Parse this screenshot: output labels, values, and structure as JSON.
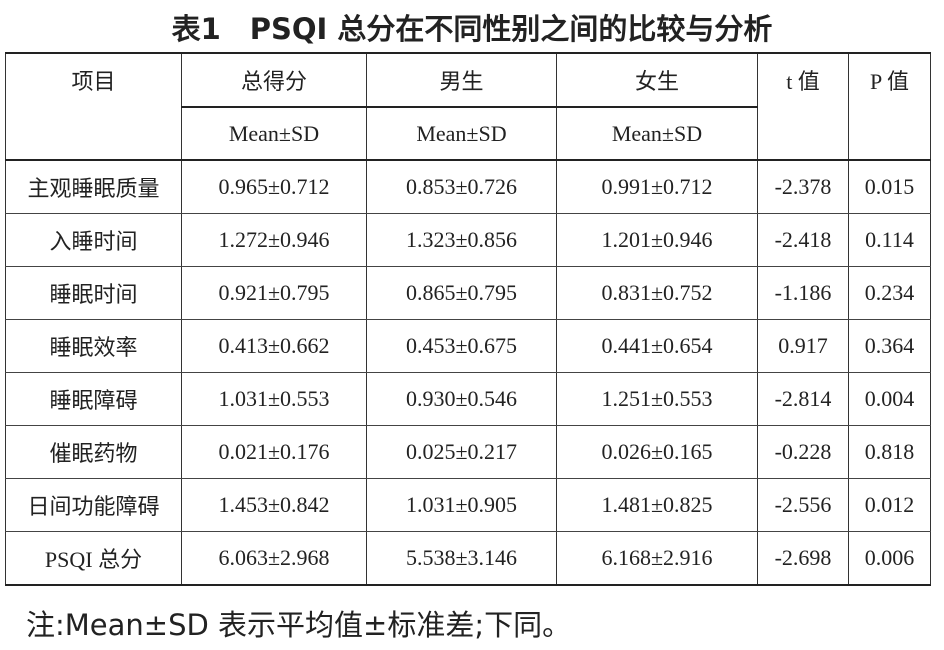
{
  "title": "表1　PSQI 总分在不同性别之间的比较与分析",
  "table": {
    "header": [
      "项目",
      "总得分",
      "男生",
      "女生",
      "t 值",
      "P 值"
    ],
    "subheader": [
      "Mean±SD",
      "Mean±SD",
      "Mean±SD"
    ],
    "rows": [
      [
        "主观睡眠质量",
        "0.965±0.712",
        "0.853±0.726",
        "0.991±0.712",
        "-2.378",
        "0.015"
      ],
      [
        "入睡时间",
        "1.272±0.946",
        "1.323±0.856",
        "1.201±0.946",
        "-2.418",
        "0.114"
      ],
      [
        "睡眠时间",
        "0.921±0.795",
        "0.865±0.795",
        "0.831±0.752",
        "-1.186",
        "0.234"
      ],
      [
        "睡眠效率",
        "0.413±0.662",
        "0.453±0.675",
        "0.441±0.654",
        "0.917",
        "0.364"
      ],
      [
        "睡眠障碍",
        "1.031±0.553",
        "0.930±0.546",
        "1.251±0.553",
        "-2.814",
        "0.004"
      ],
      [
        "催眠药物",
        "0.021±0.176",
        "0.025±0.217",
        "0.026±0.165",
        "-0.228",
        "0.818"
      ],
      [
        "日间功能障碍",
        "1.453±0.842",
        "1.031±0.905",
        "1.481±0.825",
        "-2.556",
        "0.012"
      ],
      [
        "PSQI 总分",
        "6.063±2.968",
        "5.538±3.146",
        "6.168±2.916",
        "-2.698",
        "0.006"
      ]
    ]
  },
  "note": "注:Mean±SD 表示平均值±标准差;下同。"
}
